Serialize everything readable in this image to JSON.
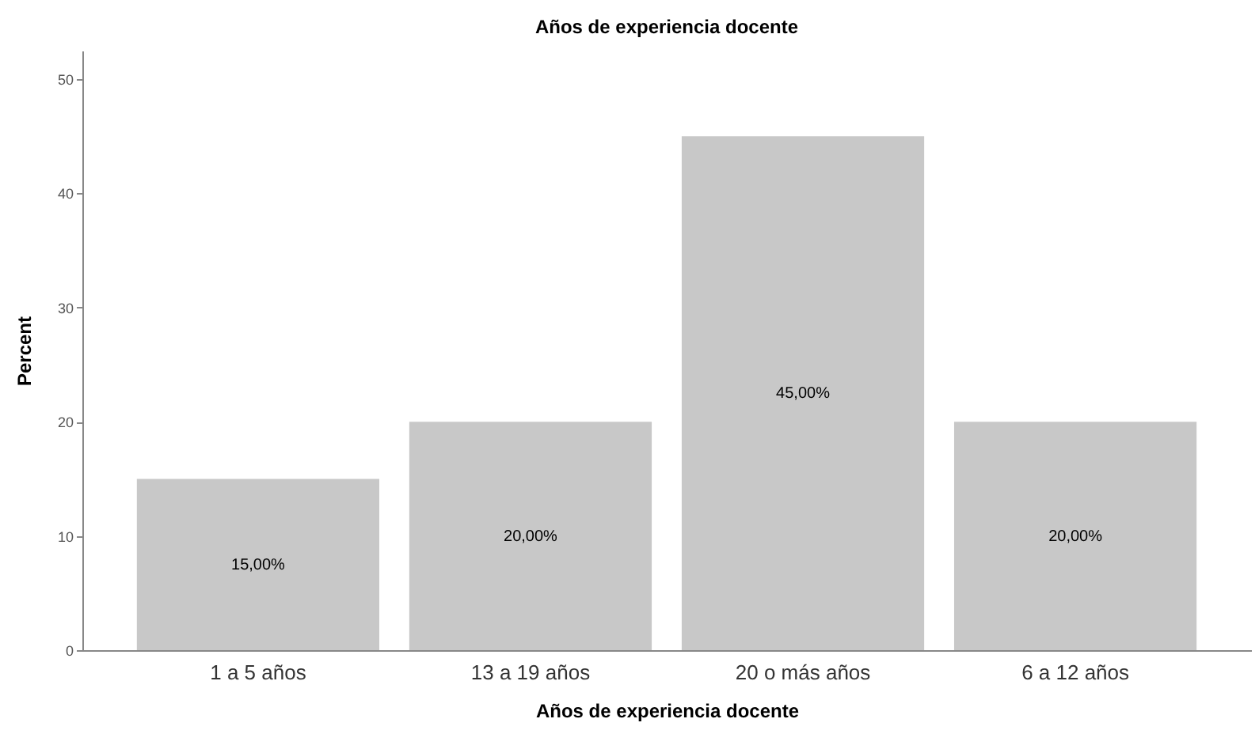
{
  "chart_data": {
    "type": "bar",
    "title": "Años de experiencia docente",
    "xlabel": "Años de experiencia docente",
    "ylabel": "Percent",
    "categories": [
      "1 a 5 años",
      "13 a 19 años",
      "20 o más años",
      "6 a 12 años"
    ],
    "values": [
      15,
      20,
      45,
      20
    ],
    "value_labels": [
      "15,00%",
      "20,00%",
      "45,00%",
      "20,00%"
    ],
    "color": "#c8c8c8",
    "ylim": [
      0,
      52.5
    ],
    "yticks": [
      0,
      10,
      20,
      30,
      40,
      50
    ],
    "grid": false
  }
}
